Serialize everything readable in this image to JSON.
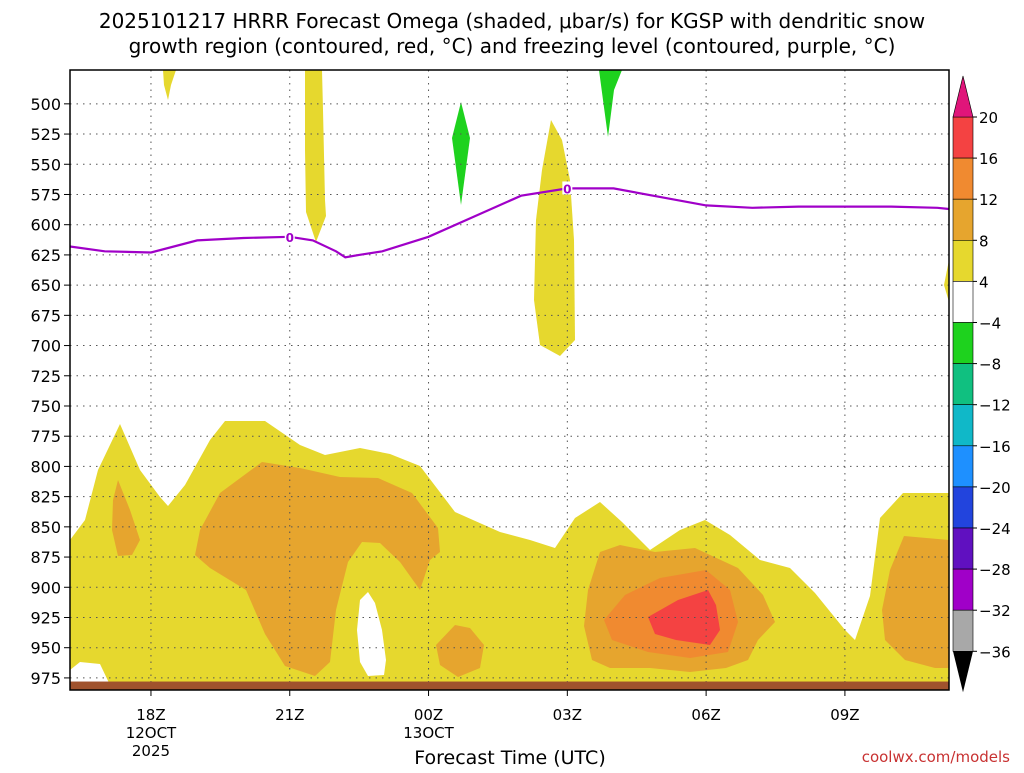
{
  "chart_data": {
    "type": "heatmap",
    "title": "2025101217 HRRR Forecast Omega (shaded, μbar/s) for KGSP with dendritic snow growth region (contoured, red, °C) and freezing level (contoured, purple, °C)",
    "title_lines": [
      "2025101217 HRRR Forecast Omega (shaded, μbar/s) for KGSP with dendritic snow",
      "growth region (contoured, red, °C) and freezing level (contoured, purple, °C)"
    ],
    "xlabel": "Forecast Time (UTC)",
    "ylabel": "",
    "x_range_hours": [
      -0.75,
      18.25
    ],
    "y_range_hPa": [
      472,
      985
    ],
    "y_ticks": [
      500,
      525,
      550,
      575,
      600,
      625,
      650,
      675,
      700,
      725,
      750,
      775,
      800,
      825,
      850,
      875,
      900,
      925,
      950,
      975
    ],
    "x_ticks": [
      {
        "hour": 1,
        "label": "18Z",
        "sublabel": "12OCT",
        "sublabel2": "2025"
      },
      {
        "hour": 4,
        "label": "21Z",
        "sublabel": "",
        "sublabel2": ""
      },
      {
        "hour": 7,
        "label": "00Z",
        "sublabel": "13OCT",
        "sublabel2": ""
      },
      {
        "hour": 10,
        "label": "03Z",
        "sublabel": "",
        "sublabel2": ""
      },
      {
        "hour": 13,
        "label": "06Z",
        "sublabel": "",
        "sublabel2": ""
      },
      {
        "hour": 16,
        "label": "09Z",
        "sublabel": "",
        "sublabel2": ""
      }
    ],
    "freezing_level": {
      "name": "freezing level (0°C)",
      "color": "#a000c8",
      "label": "0",
      "points": [
        [
          -0.75,
          618
        ],
        [
          0,
          622
        ],
        [
          1,
          623
        ],
        [
          2,
          613
        ],
        [
          3,
          611
        ],
        [
          4,
          610
        ],
        [
          4.5,
          613
        ],
        [
          5.0,
          622
        ],
        [
          5.2,
          627
        ],
        [
          5.5,
          625
        ],
        [
          6,
          622
        ],
        [
          7,
          610
        ],
        [
          8,
          593
        ],
        [
          9,
          576
        ],
        [
          10,
          570
        ],
        [
          10.5,
          570
        ],
        [
          11,
          570
        ],
        [
          12,
          577
        ],
        [
          13,
          584
        ],
        [
          14,
          586
        ],
        [
          15,
          585
        ],
        [
          16,
          585
        ],
        [
          17,
          585
        ],
        [
          18,
          586
        ],
        [
          18.25,
          587
        ]
      ],
      "label_points": [
        [
          4,
          610
        ],
        [
          10,
          570
        ]
      ]
    },
    "omega_regions": [
      {
        "level": "4 to 8",
        "color": "#e6d82e"
      },
      {
        "level": "8 to 12",
        "color": "#e6a52e"
      },
      {
        "level": "12 to 16",
        "color": "#f08a30"
      },
      {
        "level": "16 to 20",
        "color": "#f44242"
      },
      {
        "level": "-4 to -8",
        "color": "#1ed21e"
      }
    ],
    "colorbar": {
      "labels": [
        "20",
        "16",
        "12",
        "8",
        "4",
        "−4",
        "−8",
        "−12",
        "−16",
        "−20",
        "−24",
        "−28",
        "−32",
        "−36"
      ],
      "colors": [
        "#f44242",
        "#f08a30",
        "#e6a52e",
        "#e6d82e",
        "#ffffff",
        "#1ed21e",
        "#10c080",
        "#10b8c8",
        "#1e90ff",
        "#2244dd",
        "#6010c0",
        "#a000c8",
        "#a8a8a8"
      ],
      "top_arrow_color": "#e0157a",
      "bottom_arrow_color": "#000000"
    },
    "ground_color": "#a0522d"
  },
  "credit": "coolwx.com/models"
}
